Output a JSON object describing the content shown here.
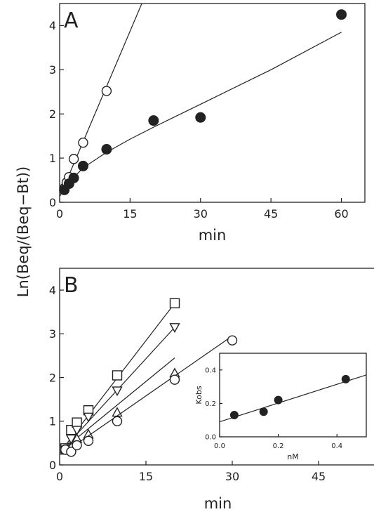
{
  "figure": {
    "ylabel": "Ln(Beq/(Beq−Bt))"
  },
  "chart_data": [
    {
      "id": "A",
      "panel_label": "A",
      "type": "scatter",
      "xlabel": "min",
      "ylabel": "Ln(Beq/(Beq−Bt))",
      "xlim": [
        0,
        65
      ],
      "ylim": [
        0,
        4.5
      ],
      "xticks": [
        0,
        15,
        30,
        45,
        60
      ],
      "yticks": [
        0,
        1,
        2,
        3,
        4
      ],
      "series": [
        {
          "marker": "open-circle",
          "points": [
            [
              1,
              0.32
            ],
            [
              1.5,
              0.45
            ],
            [
              2,
              0.57
            ],
            [
              3,
              0.98
            ],
            [
              5,
              1.35
            ],
            [
              10,
              2.52
            ]
          ],
          "fit": {
            "type": "line",
            "x": [
              0,
              17.5
            ],
            "y": [
              0.12,
              4.5
            ]
          }
        },
        {
          "marker": "filled-circle",
          "points": [
            [
              1,
              0.28
            ],
            [
              2,
              0.42
            ],
            [
              3,
              0.55
            ],
            [
              5,
              0.82
            ],
            [
              10,
              1.2
            ],
            [
              20,
              1.85
            ],
            [
              30,
              1.92
            ],
            [
              60,
              4.25
            ]
          ],
          "fit": {
            "type": "curve",
            "x": [
              0.5,
              2,
              5,
              10,
              15,
              20,
              30,
              45,
              60
            ],
            "y": [
              0.22,
              0.45,
              0.78,
              1.13,
              1.43,
              1.7,
              2.22,
              3.0,
              3.85
            ]
          }
        }
      ]
    },
    {
      "id": "B",
      "panel_label": "B",
      "type": "scatter",
      "xlabel": "min",
      "ylabel": "Ln(Beq/(Beq−Bt))",
      "xlim": [
        0,
        55
      ],
      "ylim": [
        0,
        4.5
      ],
      "xticks": [
        0,
        15,
        30,
        45
      ],
      "yticks": [
        0,
        1,
        2,
        3,
        4
      ],
      "series": [
        {
          "marker": "open-square",
          "points": [
            [
              1,
              0.38
            ],
            [
              2,
              0.8
            ],
            [
              3,
              0.97
            ],
            [
              5,
              1.25
            ],
            [
              10,
              2.05
            ],
            [
              20,
              3.7
            ]
          ],
          "fit": {
            "type": "line",
            "x": [
              1,
              20
            ],
            "y": [
              0.45,
              3.7
            ]
          }
        },
        {
          "marker": "open-triangle-down",
          "points": [
            [
              1,
              0.35
            ],
            [
              2,
              0.6
            ],
            [
              3,
              0.8
            ],
            [
              5,
              1.1
            ],
            [
              10,
              1.7
            ],
            [
              20,
              3.15
            ]
          ],
          "fit": {
            "type": "line",
            "x": [
              1,
              20
            ],
            "y": [
              0.42,
              3.15
            ]
          }
        },
        {
          "marker": "open-triangle-up",
          "points": [
            [
              1,
              0.33
            ],
            [
              2,
              0.4
            ],
            [
              3,
              0.6
            ],
            [
              5,
              0.7
            ],
            [
              10,
              1.2
            ],
            [
              20,
              2.1
            ]
          ],
          "fit": {
            "type": "line",
            "x": [
              1,
              20
            ],
            "y": [
              0.4,
              2.45
            ]
          }
        },
        {
          "marker": "open-circle",
          "points": [
            [
              1,
              0.35
            ],
            [
              2,
              0.3
            ],
            [
              3,
              0.45
            ],
            [
              5,
              0.55
            ],
            [
              10,
              1.0
            ],
            [
              20,
              1.95
            ],
            [
              30,
              2.85
            ]
          ],
          "fit": {
            "type": "line",
            "x": [
              1,
              30
            ],
            "y": [
              0.3,
              2.95
            ]
          }
        }
      ]
    },
    {
      "id": "B-inset",
      "type": "scatter",
      "xlabel": "nM",
      "ylabel": "Kobs",
      "xlim": [
        0,
        0.5
      ],
      "ylim": [
        0,
        0.5
      ],
      "xticks": [
        0.0,
        0.2,
        0.4
      ],
      "yticks": [
        0.0,
        0.2,
        0.4
      ],
      "series": [
        {
          "marker": "filled-circle",
          "points": [
            [
              0.05,
              0.13
            ],
            [
              0.15,
              0.15
            ],
            [
              0.2,
              0.22
            ],
            [
              0.43,
              0.345
            ]
          ],
          "fit": {
            "type": "line",
            "x": [
              0,
              0.5
            ],
            "y": [
              0.09,
              0.37
            ]
          }
        }
      ]
    }
  ]
}
